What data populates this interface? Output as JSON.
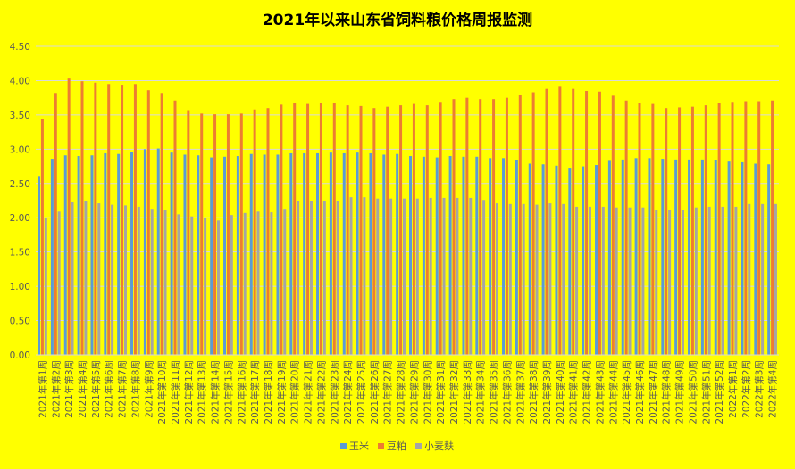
{
  "chart_data": {
    "type": "bar",
    "title": "2021年以来山东省饲料粮价格周报监测",
    "xlabel": "",
    "ylabel": "",
    "ylim": [
      0,
      4.5
    ],
    "yticks": [
      0.0,
      0.5,
      1.0,
      1.5,
      2.0,
      2.5,
      3.0,
      3.5,
      4.0,
      4.5
    ],
    "grid": true,
    "legend_position": "bottom",
    "colors": {
      "background": "#ffff00",
      "grid": "#d9d9d9",
      "axis_text": "#595959"
    },
    "categories": [
      "2021年第1周",
      "2021年第2周",
      "2021年第3周",
      "2021年第4周",
      "2021年第5周",
      "2021年第6周",
      "2021年第7周",
      "2021年第8周",
      "2021年第9周",
      "2021年第10周",
      "2021年第11周",
      "2021年第12周",
      "2021年第13周",
      "2021年第14周",
      "2021年第15周",
      "2021年第16周",
      "2021年第17周",
      "2021年第18周",
      "2021年第19周",
      "2021年第20周",
      "2021年第21周",
      "2021年第22周",
      "2021年第23周",
      "2021年第24周",
      "2021年第25周",
      "2021年第26周",
      "2021年第27周",
      "2021年第28周",
      "2021年第29周",
      "2021年第30周",
      "2021年第31周",
      "2021年第32周",
      "2021年第33周",
      "2021年第34周",
      "2021年第35周",
      "2021年第36周",
      "2021年第37周",
      "2021年第38周",
      "2021年第39周",
      "2021年第40周",
      "2021年第41周",
      "2021年第42周",
      "2021年第43周",
      "2021年第44周",
      "2021年第45周",
      "2021年第46周",
      "2021年第47周",
      "2021年第48周",
      "2021年第49周",
      "2021年第50周",
      "2021年第51周",
      "2021年第52周",
      "2022年第1周",
      "2022年第2周",
      "2022年第3周",
      "2022年第4周"
    ],
    "series": [
      {
        "name": "玉米",
        "color": "#5b9bd5",
        "values": [
          2.61,
          2.86,
          2.91,
          2.9,
          2.91,
          2.94,
          2.93,
          2.96,
          3.0,
          3.01,
          2.95,
          2.92,
          2.91,
          2.88,
          2.89,
          2.9,
          2.93,
          2.92,
          2.92,
          2.94,
          2.94,
          2.94,
          2.95,
          2.94,
          2.95,
          2.94,
          2.92,
          2.93,
          2.9,
          2.89,
          2.88,
          2.9,
          2.89,
          2.89,
          2.87,
          2.87,
          2.84,
          2.79,
          2.78,
          2.76,
          2.73,
          2.75,
          2.77,
          2.83,
          2.85,
          2.87,
          2.87,
          2.86,
          2.85,
          2.85,
          2.85,
          2.84,
          2.82,
          2.81,
          2.79,
          2.78
        ]
      },
      {
        "name": "豆粕",
        "color": "#ed7d31",
        "values": [
          3.44,
          3.82,
          4.03,
          3.99,
          3.97,
          3.95,
          3.94,
          3.95,
          3.86,
          3.82,
          3.71,
          3.57,
          3.52,
          3.51,
          3.51,
          3.52,
          3.58,
          3.6,
          3.65,
          3.68,
          3.66,
          3.68,
          3.67,
          3.64,
          3.63,
          3.6,
          3.62,
          3.64,
          3.66,
          3.64,
          3.69,
          3.73,
          3.75,
          3.73,
          3.73,
          3.75,
          3.79,
          3.83,
          3.88,
          3.91,
          3.88,
          3.85,
          3.84,
          3.78,
          3.71,
          3.67,
          3.66,
          3.6,
          3.61,
          3.62,
          3.64,
          3.67,
          3.69,
          3.7,
          3.7,
          3.71
        ]
      },
      {
        "name": "小麦麸",
        "color": "#a5a5a5",
        "values": [
          2.0,
          2.09,
          2.23,
          2.25,
          2.21,
          2.19,
          2.18,
          2.16,
          2.13,
          2.12,
          2.05,
          2.02,
          1.99,
          1.96,
          2.04,
          2.07,
          2.09,
          2.08,
          2.13,
          2.25,
          2.25,
          2.25,
          2.25,
          2.3,
          2.3,
          2.28,
          2.28,
          2.28,
          2.28,
          2.29,
          2.29,
          2.29,
          2.29,
          2.26,
          2.21,
          2.2,
          2.2,
          2.19,
          2.21,
          2.2,
          2.16,
          2.16,
          2.16,
          2.15,
          2.15,
          2.15,
          2.12,
          2.12,
          2.12,
          2.15,
          2.16,
          2.16,
          2.16,
          2.2,
          2.2,
          2.2
        ]
      }
    ]
  }
}
